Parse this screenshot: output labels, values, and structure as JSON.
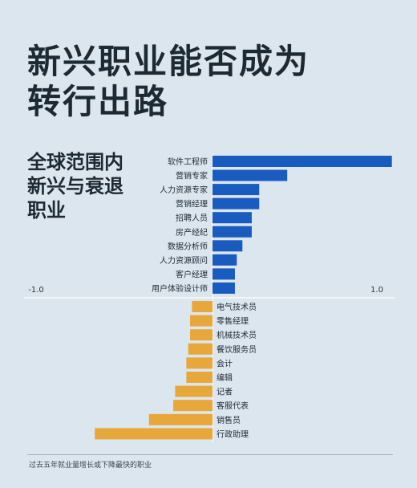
{
  "title_lines": [
    "新兴职业能否成为",
    "转行出路"
  ],
  "subtitle_lines": [
    "全球范围内",
    "新兴与衰退",
    "职业"
  ],
  "footer": "过去五年就业量增长或下降最快的职业",
  "colors": {
    "emerging": "#1a5bbf",
    "declining": "#e8a73a",
    "background": "#dbe6ef"
  },
  "chart_data": {
    "type": "bar",
    "orientation": "horizontal",
    "xlim": [
      -1.0,
      1.0
    ],
    "tick_labels": [
      "-1.0",
      "1.0"
    ],
    "series": [
      {
        "categories": [
          "软件工程师",
          "营销专家",
          "人力资源专家",
          "营销经理",
          "招聘人员",
          "房产经纪",
          "数据分析师",
          "人力资源顾问",
          "客户经理",
          "用户体验设计师"
        ],
        "values": [
          0.96,
          0.4,
          0.25,
          0.25,
          0.21,
          0.21,
          0.16,
          0.13,
          0.12,
          0.12
        ]
      },
      {
        "categories": [
          "电气技术员",
          "零售经理",
          "机械技术员",
          "餐饮服务员",
          "会计",
          "编辑",
          "记者",
          "客服代表",
          "销售员",
          "行政助理"
        ],
        "values": [
          -0.11,
          -0.12,
          -0.12,
          -0.13,
          -0.14,
          -0.14,
          -0.2,
          -0.21,
          -0.34,
          -0.63
        ]
      }
    ]
  }
}
